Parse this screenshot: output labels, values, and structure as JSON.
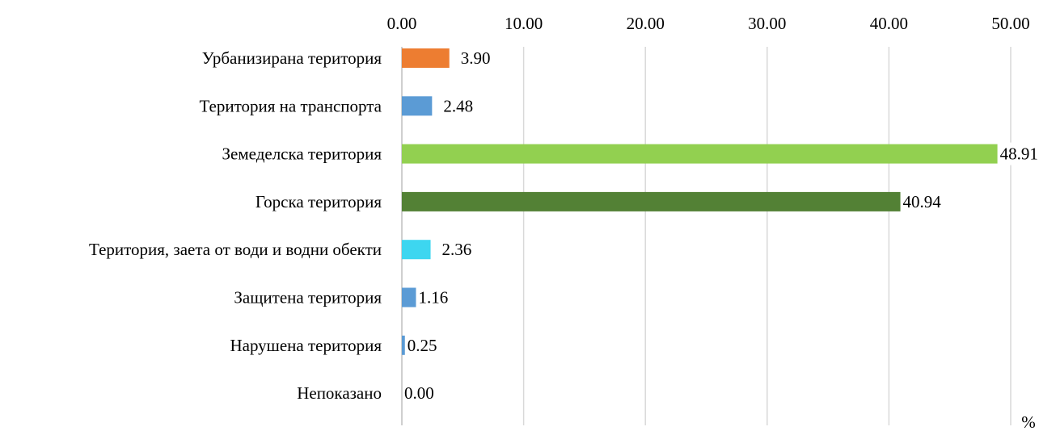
{
  "chart_data": {
    "type": "bar",
    "orientation": "horizontal",
    "categories": [
      "Урбанизирана територия",
      "Територия на транспорта",
      "Земеделска територия",
      "Горска територия",
      "Територия, заета от води и водни обекти",
      "Защитена територия",
      "Нарушена територия",
      "Непоказано"
    ],
    "values": [
      3.9,
      2.48,
      48.91,
      40.94,
      2.36,
      1.16,
      0.25,
      0.0
    ],
    "value_labels": [
      "3.90",
      "2.48",
      "48.91",
      "40.94",
      "2.36",
      "1.16",
      "0.25",
      "0.00"
    ],
    "colors": [
      "#ED7D31",
      "#5B9BD5",
      "#92D050",
      "#538135",
      "#3DD6F0",
      "#5B9BD5",
      "#5B9BD5",
      "#5B9BD5"
    ],
    "x_ticks": [
      0,
      10,
      20,
      30,
      40,
      50
    ],
    "x_tick_labels": [
      "0.00",
      "10.00",
      "20.00",
      "30.00",
      "40.00",
      "50.00"
    ],
    "xlim": [
      0,
      50
    ],
    "x_axis_position": "top",
    "unit_label": "%",
    "grid": "vertical",
    "grid_color": "#D9D9D9"
  }
}
